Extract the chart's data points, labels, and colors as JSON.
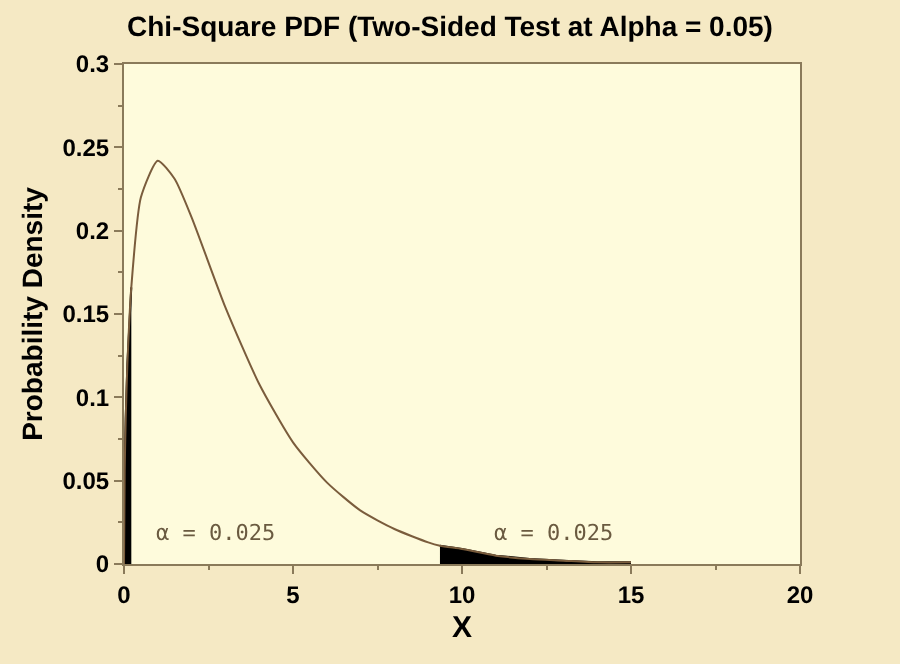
{
  "chart_data": {
    "type": "line",
    "title": "Chi-Square PDF (Two-Sided Test at Alpha = 0.05)",
    "xlabel": "X",
    "ylabel": "Probability Density",
    "series": [
      {
        "color": "#7a5c3c",
        "x": [
          0,
          0.02,
          0.05,
          0.1,
          0.216,
          0.5,
          1,
          1.5,
          2,
          3,
          4,
          5,
          6,
          7,
          8,
          9,
          9.348,
          10,
          11,
          12,
          13,
          14,
          15
        ],
        "values": [
          0,
          0.056,
          0.087,
          0.12,
          0.166,
          0.22,
          0.242,
          0.231,
          0.208,
          0.154,
          0.108,
          0.073,
          0.049,
          0.032,
          0.021,
          0.013,
          0.011,
          0.009,
          0.005,
          0.003,
          0.002,
          0.001,
          0.001
        ]
      },
      {
        "type": "area",
        "color": "#000000",
        "x": [
          0,
          0.02,
          0.05,
          0.1,
          0.216
        ],
        "values": [
          0,
          0.056,
          0.087,
          0.12,
          0.166
        ]
      },
      {
        "type": "area",
        "color": "#000000",
        "x": [
          9.348,
          10,
          11,
          12,
          13,
          14,
          15
        ],
        "values": [
          0.011,
          0.009,
          0.005,
          0.003,
          0.002,
          0.001,
          0.001
        ]
      }
    ],
    "annotations": [
      "α = 0.025",
      "α = 0.025"
    ],
    "xlim": [
      0,
      20
    ],
    "xticks": [
      0,
      5,
      10,
      15,
      20
    ],
    "ylim": [
      0,
      0.3
    ],
    "yticks": [
      0,
      0.05,
      0.1,
      0.15,
      0.2,
      0.25,
      0.3
    ],
    "grid": false,
    "legend": false
  }
}
